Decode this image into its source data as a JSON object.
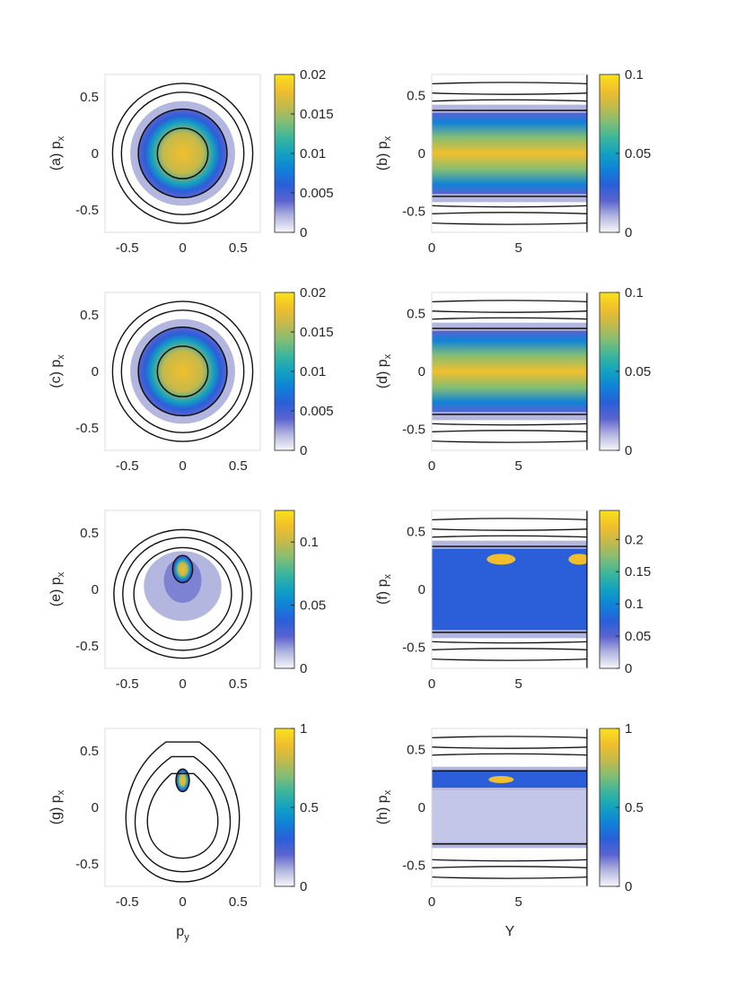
{
  "colorbar_colors": [
    "#f7f7fb",
    "#b3b6de",
    "#5b63cf",
    "#2a5fd9",
    "#0f82d8",
    "#12a1c1",
    "#3bb69c",
    "#83bd75",
    "#c4b94b",
    "#f1bf2c",
    "#f9e21b"
  ],
  "chart_data": [
    {
      "id": "a",
      "type": "heatmap",
      "ylabel": "(a) p",
      "ylabel_sub": "x",
      "xlabel": "",
      "xlim": [
        -0.7,
        0.7
      ],
      "ylim": [
        -0.7,
        0.7
      ],
      "xticks": [
        -0.5,
        0,
        0.5
      ],
      "yticks": [
        -0.5,
        0,
        0.5
      ],
      "xtick_labels": [
        "-0.5",
        "0",
        "0.5"
      ],
      "ytick_labels": [
        "-0.5",
        "0",
        "0.5"
      ],
      "cbar_max": 0.02,
      "cbar_ticks": [
        0,
        0.005,
        0.01,
        0.015,
        0.02
      ],
      "cbar_labels": [
        "0",
        "0.005",
        "0.01",
        "0.015",
        "0.02"
      ],
      "show_xticks": true
    },
    {
      "id": "b",
      "type": "heatmap",
      "ylabel": "(b) p",
      "ylabel_sub": "x",
      "xlabel": "",
      "xlim": [
        0,
        9
      ],
      "ylim": [
        -0.68,
        0.68
      ],
      "xticks": [
        0,
        5
      ],
      "yticks": [
        -0.5,
        0,
        0.5
      ],
      "xtick_labels": [
        "0",
        "5"
      ],
      "ytick_labels": [
        "-0.5",
        "0",
        "0.5"
      ],
      "cbar_max": 0.1,
      "cbar_ticks": [
        0,
        0.05,
        0.1
      ],
      "cbar_labels": [
        "0",
        "0.05",
        "0.1"
      ],
      "show_xticks": true
    },
    {
      "id": "c",
      "type": "heatmap",
      "ylabel": "(c) p",
      "ylabel_sub": "x",
      "xlabel": "",
      "xlim": [
        -0.7,
        0.7
      ],
      "ylim": [
        -0.7,
        0.7
      ],
      "xticks": [
        -0.5,
        0,
        0.5
      ],
      "yticks": [
        -0.5,
        0,
        0.5
      ],
      "xtick_labels": [
        "-0.5",
        "0",
        "0.5"
      ],
      "ytick_labels": [
        "-0.5",
        "0",
        "0.5"
      ],
      "cbar_max": 0.02,
      "cbar_ticks": [
        0,
        0.005,
        0.01,
        0.015,
        0.02
      ],
      "cbar_labels": [
        "0",
        "0.005",
        "0.01",
        "0.015",
        "0.02"
      ],
      "show_xticks": true
    },
    {
      "id": "d",
      "type": "heatmap",
      "ylabel": "(d) p",
      "ylabel_sub": "x",
      "xlabel": "",
      "xlim": [
        0,
        9
      ],
      "ylim": [
        -0.68,
        0.68
      ],
      "xticks": [
        0,
        5
      ],
      "yticks": [
        -0.5,
        0,
        0.5
      ],
      "xtick_labels": [
        "0",
        "5"
      ],
      "ytick_labels": [
        "-0.5",
        "0",
        "0.5"
      ],
      "cbar_max": 0.1,
      "cbar_ticks": [
        0,
        0.05,
        0.1
      ],
      "cbar_labels": [
        "0",
        "0.05",
        "0.1"
      ],
      "show_xticks": true
    },
    {
      "id": "e",
      "type": "heatmap",
      "ylabel": "(e) p",
      "ylabel_sub": "x",
      "xlabel": "",
      "xlim": [
        -0.7,
        0.7
      ],
      "ylim": [
        -0.7,
        0.7
      ],
      "xticks": [
        -0.5,
        0,
        0.5
      ],
      "yticks": [
        -0.5,
        0,
        0.5
      ],
      "xtick_labels": [
        "-0.5",
        "0",
        "0.5"
      ],
      "ytick_labels": [
        "-0.5",
        "0",
        "0.5"
      ],
      "cbar_max": 0.125,
      "cbar_ticks": [
        0,
        0.05,
        0.1
      ],
      "cbar_labels": [
        "0",
        "0.05",
        "0.1"
      ],
      "show_xticks": true
    },
    {
      "id": "f",
      "type": "heatmap",
      "ylabel": "(f) p",
      "ylabel_sub": "x",
      "xlabel": "",
      "xlim": [
        0,
        9
      ],
      "ylim": [
        -0.68,
        0.68
      ],
      "xticks": [
        0,
        5
      ],
      "yticks": [
        -0.5,
        0,
        0.5
      ],
      "xtick_labels": [
        "0",
        "5"
      ],
      "ytick_labels": [
        "-0.5",
        "0",
        "0.5"
      ],
      "cbar_max": 0.245,
      "cbar_ticks": [
        0,
        0.05,
        0.1,
        0.15,
        0.2
      ],
      "cbar_labels": [
        "0",
        "0.05",
        "0.1",
        "0.15",
        "0.2"
      ],
      "show_xticks": true
    },
    {
      "id": "g",
      "type": "heatmap",
      "ylabel": "(g) p",
      "ylabel_sub": "x",
      "xlabel": "p",
      "xlabel_sub": "y",
      "xlim": [
        -0.7,
        0.7
      ],
      "ylim": [
        -0.7,
        0.7
      ],
      "xticks": [
        -0.5,
        0,
        0.5
      ],
      "yticks": [
        -0.5,
        0,
        0.5
      ],
      "xtick_labels": [
        "-0.5",
        "0",
        "0.5"
      ],
      "ytick_labels": [
        "-0.5",
        "0",
        "0.5"
      ],
      "cbar_max": 1,
      "cbar_ticks": [
        0,
        0.5,
        1
      ],
      "cbar_labels": [
        "0",
        "0.5",
        "1"
      ],
      "show_xticks": true
    },
    {
      "id": "h",
      "type": "heatmap",
      "ylabel": "(h) p",
      "ylabel_sub": "x",
      "xlabel": "Y",
      "xlabel_sub": "",
      "xlim": [
        0,
        9
      ],
      "ylim": [
        -0.68,
        0.68
      ],
      "xticks": [
        0,
        5
      ],
      "yticks": [
        -0.5,
        0,
        0.5
      ],
      "xtick_labels": [
        "0",
        "5"
      ],
      "ytick_labels": [
        "-0.5",
        "0",
        "0.5"
      ],
      "cbar_max": 1,
      "cbar_ticks": [
        0,
        0.5,
        1
      ],
      "cbar_labels": [
        "0",
        "0.5",
        "1"
      ],
      "show_xticks": true
    }
  ]
}
